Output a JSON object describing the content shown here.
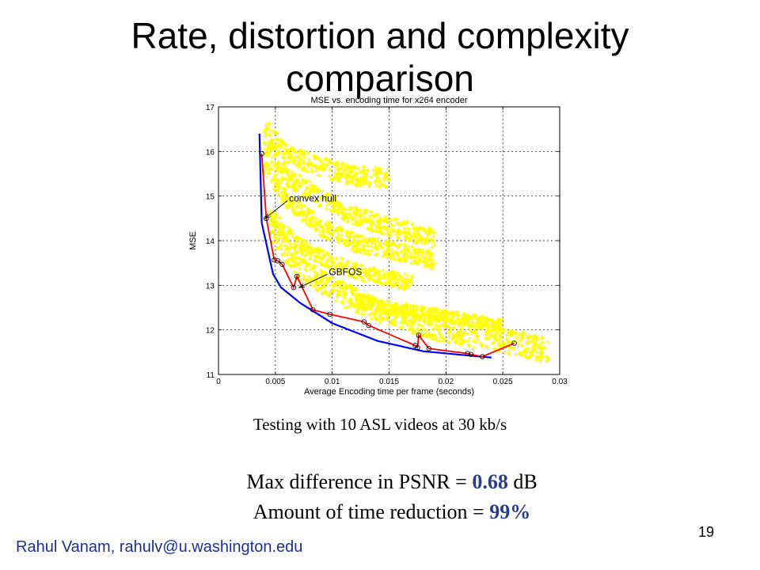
{
  "slide": {
    "title": "Rate, distortion and complexity comparison",
    "caption": "Testing with 10 ASL videos at 30 kb/s",
    "stat1_prefix": "Max difference in PSNR = ",
    "stat1_value": "0.68",
    "stat1_suffix": " dB",
    "stat2_prefix": "Amount of time reduction = ",
    "stat2_value": "99%",
    "author": "Rahul Vanam, rahulv@u.washington.edu",
    "page_number": "19"
  },
  "chart_data": {
    "type": "scatter",
    "title": "MSE vs. encoding time for x264 encoder",
    "xlabel": "Average Encoding time per frame (seconds)",
    "ylabel": "MSE",
    "xlim": [
      0,
      0.03
    ],
    "ylim": [
      11,
      17
    ],
    "xticks": [
      0,
      0.005,
      0.01,
      0.015,
      0.02,
      0.025,
      0.03
    ],
    "xtick_labels": [
      "0",
      "0.005",
      "0.01",
      "0.015",
      "0.02",
      "0.025",
      "0.03"
    ],
    "yticks": [
      11,
      12,
      13,
      14,
      15,
      16,
      17
    ],
    "ytick_labels": [
      "11",
      "12",
      "13",
      "14",
      "15",
      "16",
      "17"
    ],
    "grid": true,
    "scatter_color": "#ffff00",
    "bands": [
      {
        "x": [
          0.004,
          0.006,
          0.009,
          0.012,
          0.015
        ],
        "y": [
          16.55,
          15.95,
          15.65,
          15.45,
          15.4
        ],
        "spread": 0.22
      },
      {
        "x": [
          0.004,
          0.006,
          0.009,
          0.012,
          0.016,
          0.019
        ],
        "y": [
          16.2,
          15.45,
          14.95,
          14.55,
          14.25,
          14.05
        ],
        "spread": 0.22
      },
      {
        "x": [
          0.004,
          0.006,
          0.009,
          0.012,
          0.015,
          0.019
        ],
        "y": [
          15.7,
          14.9,
          14.3,
          13.95,
          13.8,
          13.55
        ],
        "spread": 0.2
      },
      {
        "x": [
          0.0045,
          0.007,
          0.01,
          0.014,
          0.019,
          0.024,
          0.029
        ],
        "y": [
          14.3,
          13.4,
          12.9,
          12.45,
          12.05,
          11.8,
          11.55
        ],
        "spread": 0.28
      },
      {
        "x": [
          0.0045,
          0.007,
          0.01,
          0.013,
          0.017
        ],
        "y": [
          14.6,
          13.9,
          13.5,
          13.25,
          13.05
        ],
        "spread": 0.18
      },
      {
        "x": [
          0.012,
          0.016,
          0.02,
          0.025
        ],
        "y": [
          12.65,
          12.45,
          12.3,
          12.1
        ],
        "spread": 0.14
      }
    ],
    "series": [
      {
        "name": "convex hull",
        "color": "#0000ff",
        "x": [
          0.0036,
          0.0038,
          0.0048,
          0.0055,
          0.0072,
          0.01,
          0.014,
          0.018,
          0.023,
          0.024
        ],
        "y": [
          16.4,
          14.4,
          13.25,
          12.95,
          12.6,
          12.15,
          11.75,
          11.52,
          11.4,
          11.38
        ]
      },
      {
        "name": "GBFOS",
        "color": "#ff0000",
        "marker": "circle",
        "x": [
          0.0038,
          0.0042,
          0.0049,
          0.0052,
          0.0056,
          0.0066,
          0.0069,
          0.0083,
          0.0098,
          0.0128,
          0.0132,
          0.0173,
          0.0175,
          0.0176,
          0.0185,
          0.0219,
          0.0222,
          0.0232,
          0.026
        ],
        "y": [
          15.95,
          14.5,
          13.57,
          13.55,
          13.47,
          12.95,
          13.2,
          12.45,
          12.35,
          12.18,
          12.1,
          11.65,
          11.6,
          11.88,
          11.58,
          11.47,
          11.45,
          11.4,
          11.7
        ]
      }
    ],
    "annotations": [
      {
        "text": "convex hull",
        "x": 0.0062,
        "y": 14.95,
        "arrow_to": [
          0.0041,
          14.5
        ]
      },
      {
        "text": "GBFOS",
        "x": 0.0097,
        "y": 13.3,
        "arrow_to": [
          0.0071,
          12.95
        ]
      }
    ]
  }
}
